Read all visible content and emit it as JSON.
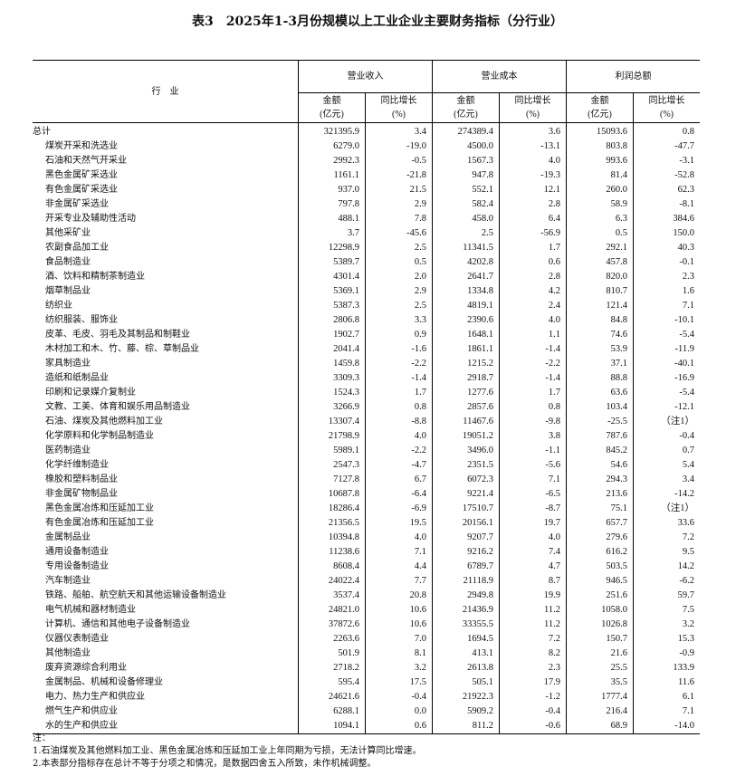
{
  "title": "表3　2025年1-3月份规模以上工业企业主要财务指标（分行业）",
  "header": {
    "industry": "行　业",
    "groups": [
      "营业收入",
      "营业成本",
      "利润总额"
    ],
    "amount": "金额",
    "amount_unit": "(亿元)",
    "growth": "同比增长",
    "growth_unit": "(%)"
  },
  "rows": [
    [
      "总计",
      "321395.9",
      "3.4",
      "274389.4",
      "3.6",
      "15093.6",
      "0.8"
    ],
    [
      "煤炭开采和洗选业",
      "6279.0",
      "-19.0",
      "4500.0",
      "-13.1",
      "803.8",
      "-47.7"
    ],
    [
      "石油和天然气开采业",
      "2992.3",
      "-0.5",
      "1567.3",
      "4.0",
      "993.6",
      "-3.1"
    ],
    [
      "黑色金属矿采选业",
      "1161.1",
      "-21.8",
      "947.8",
      "-19.3",
      "81.4",
      "-52.8"
    ],
    [
      "有色金属矿采选业",
      "937.0",
      "21.5",
      "552.1",
      "12.1",
      "260.0",
      "62.3"
    ],
    [
      "非金属矿采选业",
      "797.8",
      "2.9",
      "582.4",
      "2.8",
      "58.9",
      "-8.1"
    ],
    [
      "开采专业及辅助性活动",
      "488.1",
      "7.8",
      "458.0",
      "6.4",
      "6.3",
      "384.6"
    ],
    [
      "其他采矿业",
      "3.7",
      "-45.6",
      "2.5",
      "-56.9",
      "0.5",
      "150.0"
    ],
    [
      "农副食品加工业",
      "12298.9",
      "2.5",
      "11341.5",
      "1.7",
      "292.1",
      "40.3"
    ],
    [
      "食品制造业",
      "5389.7",
      "0.5",
      "4202.8",
      "0.6",
      "457.8",
      "-0.1"
    ],
    [
      "酒、饮料和精制茶制造业",
      "4301.4",
      "2.0",
      "2641.7",
      "2.8",
      "820.0",
      "2.3"
    ],
    [
      "烟草制品业",
      "5369.1",
      "2.9",
      "1334.8",
      "4.2",
      "810.7",
      "1.6"
    ],
    [
      "纺织业",
      "5387.3",
      "2.5",
      "4819.1",
      "2.4",
      "121.4",
      "7.1"
    ],
    [
      "纺织服装、服饰业",
      "2806.8",
      "3.3",
      "2390.6",
      "4.0",
      "84.8",
      "-10.1"
    ],
    [
      "皮革、毛皮、羽毛及其制品和制鞋业",
      "1902.7",
      "0.9",
      "1648.1",
      "1.1",
      "74.6",
      "-5.4"
    ],
    [
      "木材加工和木、竹、藤、棕、草制品业",
      "2041.4",
      "-1.6",
      "1861.1",
      "-1.4",
      "53.9",
      "-11.9"
    ],
    [
      "家具制造业",
      "1459.8",
      "-2.2",
      "1215.2",
      "-2.2",
      "37.1",
      "-40.1"
    ],
    [
      "造纸和纸制品业",
      "3309.3",
      "-1.4",
      "2918.7",
      "-1.4",
      "88.8",
      "-16.9"
    ],
    [
      "印刷和记录媒介复制业",
      "1524.3",
      "1.7",
      "1277.6",
      "1.7",
      "63.6",
      "-5.4"
    ],
    [
      "文教、工美、体育和娱乐用品制造业",
      "3266.9",
      "0.8",
      "2857.6",
      "0.8",
      "103.4",
      "-12.1"
    ],
    [
      "石油、煤炭及其他燃料加工业",
      "13307.4",
      "-8.8",
      "11467.6",
      "-9.8",
      "-25.5",
      "（注1）"
    ],
    [
      "化学原料和化学制品制造业",
      "21798.9",
      "4.0",
      "19051.2",
      "3.8",
      "787.6",
      "-0.4"
    ],
    [
      "医药制造业",
      "5989.1",
      "-2.2",
      "3496.0",
      "-1.1",
      "845.2",
      "0.7"
    ],
    [
      "化学纤维制造业",
      "2547.3",
      "-4.7",
      "2351.5",
      "-5.6",
      "54.6",
      "5.4"
    ],
    [
      "橡胶和塑料制品业",
      "7127.8",
      "6.7",
      "6072.3",
      "7.1",
      "294.3",
      "3.4"
    ],
    [
      "非金属矿物制品业",
      "10687.8",
      "-6.4",
      "9221.4",
      "-6.5",
      "213.6",
      "-14.2"
    ],
    [
      "黑色金属冶炼和压延加工业",
      "18286.4",
      "-6.9",
      "17510.7",
      "-8.7",
      "75.1",
      "（注1）"
    ],
    [
      "有色金属冶炼和压延加工业",
      "21356.5",
      "19.5",
      "20156.1",
      "19.7",
      "657.7",
      "33.6"
    ],
    [
      "金属制品业",
      "10394.8",
      "4.0",
      "9207.7",
      "4.0",
      "279.6",
      "7.2"
    ],
    [
      "通用设备制造业",
      "11238.6",
      "7.1",
      "9216.2",
      "7.4",
      "616.2",
      "9.5"
    ],
    [
      "专用设备制造业",
      "8608.4",
      "4.4",
      "6789.7",
      "4.7",
      "503.5",
      "14.2"
    ],
    [
      "汽车制造业",
      "24022.4",
      "7.7",
      "21118.9",
      "8.7",
      "946.5",
      "-6.2"
    ],
    [
      "铁路、船舶、航空航天和其他运输设备制造业",
      "3537.4",
      "20.8",
      "2949.8",
      "19.9",
      "251.6",
      "59.7"
    ],
    [
      "电气机械和器材制造业",
      "24821.0",
      "10.6",
      "21436.9",
      "11.2",
      "1058.0",
      "7.5"
    ],
    [
      "计算机、通信和其他电子设备制造业",
      "37872.6",
      "10.6",
      "33355.5",
      "11.2",
      "1026.8",
      "3.2"
    ],
    [
      "仪器仪表制造业",
      "2263.6",
      "7.0",
      "1694.5",
      "7.2",
      "150.7",
      "15.3"
    ],
    [
      "其他制造业",
      "501.9",
      "8.1",
      "413.1",
      "8.2",
      "21.6",
      "-0.9"
    ],
    [
      "废弃资源综合利用业",
      "2718.2",
      "3.2",
      "2613.8",
      "2.3",
      "25.5",
      "133.9"
    ],
    [
      "金属制品、机械和设备修理业",
      "595.4",
      "17.5",
      "505.1",
      "17.9",
      "35.5",
      "11.6"
    ],
    [
      "电力、热力生产和供应业",
      "24621.6",
      "-0.4",
      "21922.3",
      "-1.2",
      "1777.4",
      "6.1"
    ],
    [
      "燃气生产和供应业",
      "6288.1",
      "0.0",
      "5909.2",
      "-0.4",
      "216.4",
      "7.1"
    ],
    [
      "水的生产和供应业",
      "1094.1",
      "0.6",
      "811.2",
      "-0.6",
      "68.9",
      "-14.0"
    ]
  ],
  "notes": [
    "注：",
    "1.石油煤炭及其他燃料加工业、黑色金属冶炼和压延加工业上年同期为亏损，无法计算同比增速。",
    "2.本表部分指标存在总计不等于分项之和情况，是数据四舍五入所致，未作机械调整。"
  ]
}
